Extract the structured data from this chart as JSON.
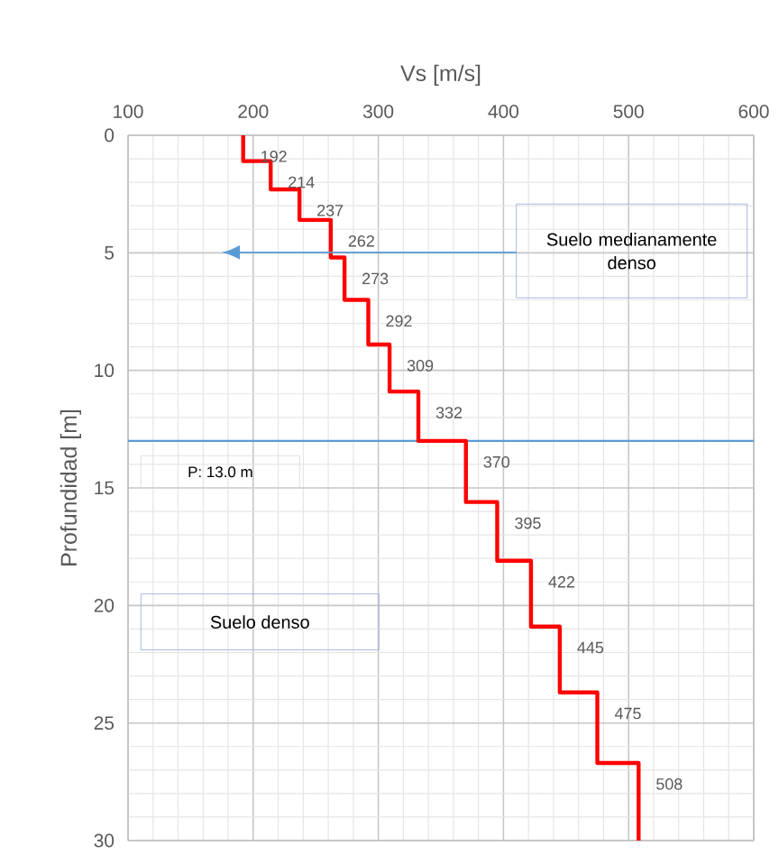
{
  "chart_data": {
    "type": "step",
    "orientation": "horizontal",
    "xlabel": "Vs [m/s]",
    "ylabel": "Profundidad [m]",
    "xlim": [
      100,
      600
    ],
    "xticks": [
      100,
      200,
      300,
      400,
      500,
      600
    ],
    "ylim": [
      30,
      0
    ],
    "yticks": [
      0,
      5,
      10,
      15,
      20,
      25,
      30
    ],
    "grid": true,
    "line_style": "solid",
    "series": [
      {
        "color": "#ff0000",
        "x": [
          0,
          1.1,
          2.3,
          3.6,
          5.2,
          7.0,
          8.9,
          10.9,
          13.0,
          15.6,
          18.1,
          20.9,
          23.7,
          26.7,
          30
        ],
        "values": [
          192,
          214,
          237,
          262,
          273,
          292,
          309,
          332,
          370,
          395,
          422,
          445,
          475,
          508,
          508
        ],
        "value_labels": [
          "192",
          "214",
          "237",
          "262",
          "273",
          "292",
          "309",
          "332",
          "370",
          "395",
          "422",
          "445",
          "475",
          "508",
          null
        ]
      }
    ],
    "ref_lines": [
      {
        "axis": "y",
        "value": 13.0,
        "label": "P: 13.0 m",
        "color": "#5b9bd5"
      }
    ],
    "annotations": [
      "Suelo medianamente denso",
      "Suelo denso"
    ]
  }
}
